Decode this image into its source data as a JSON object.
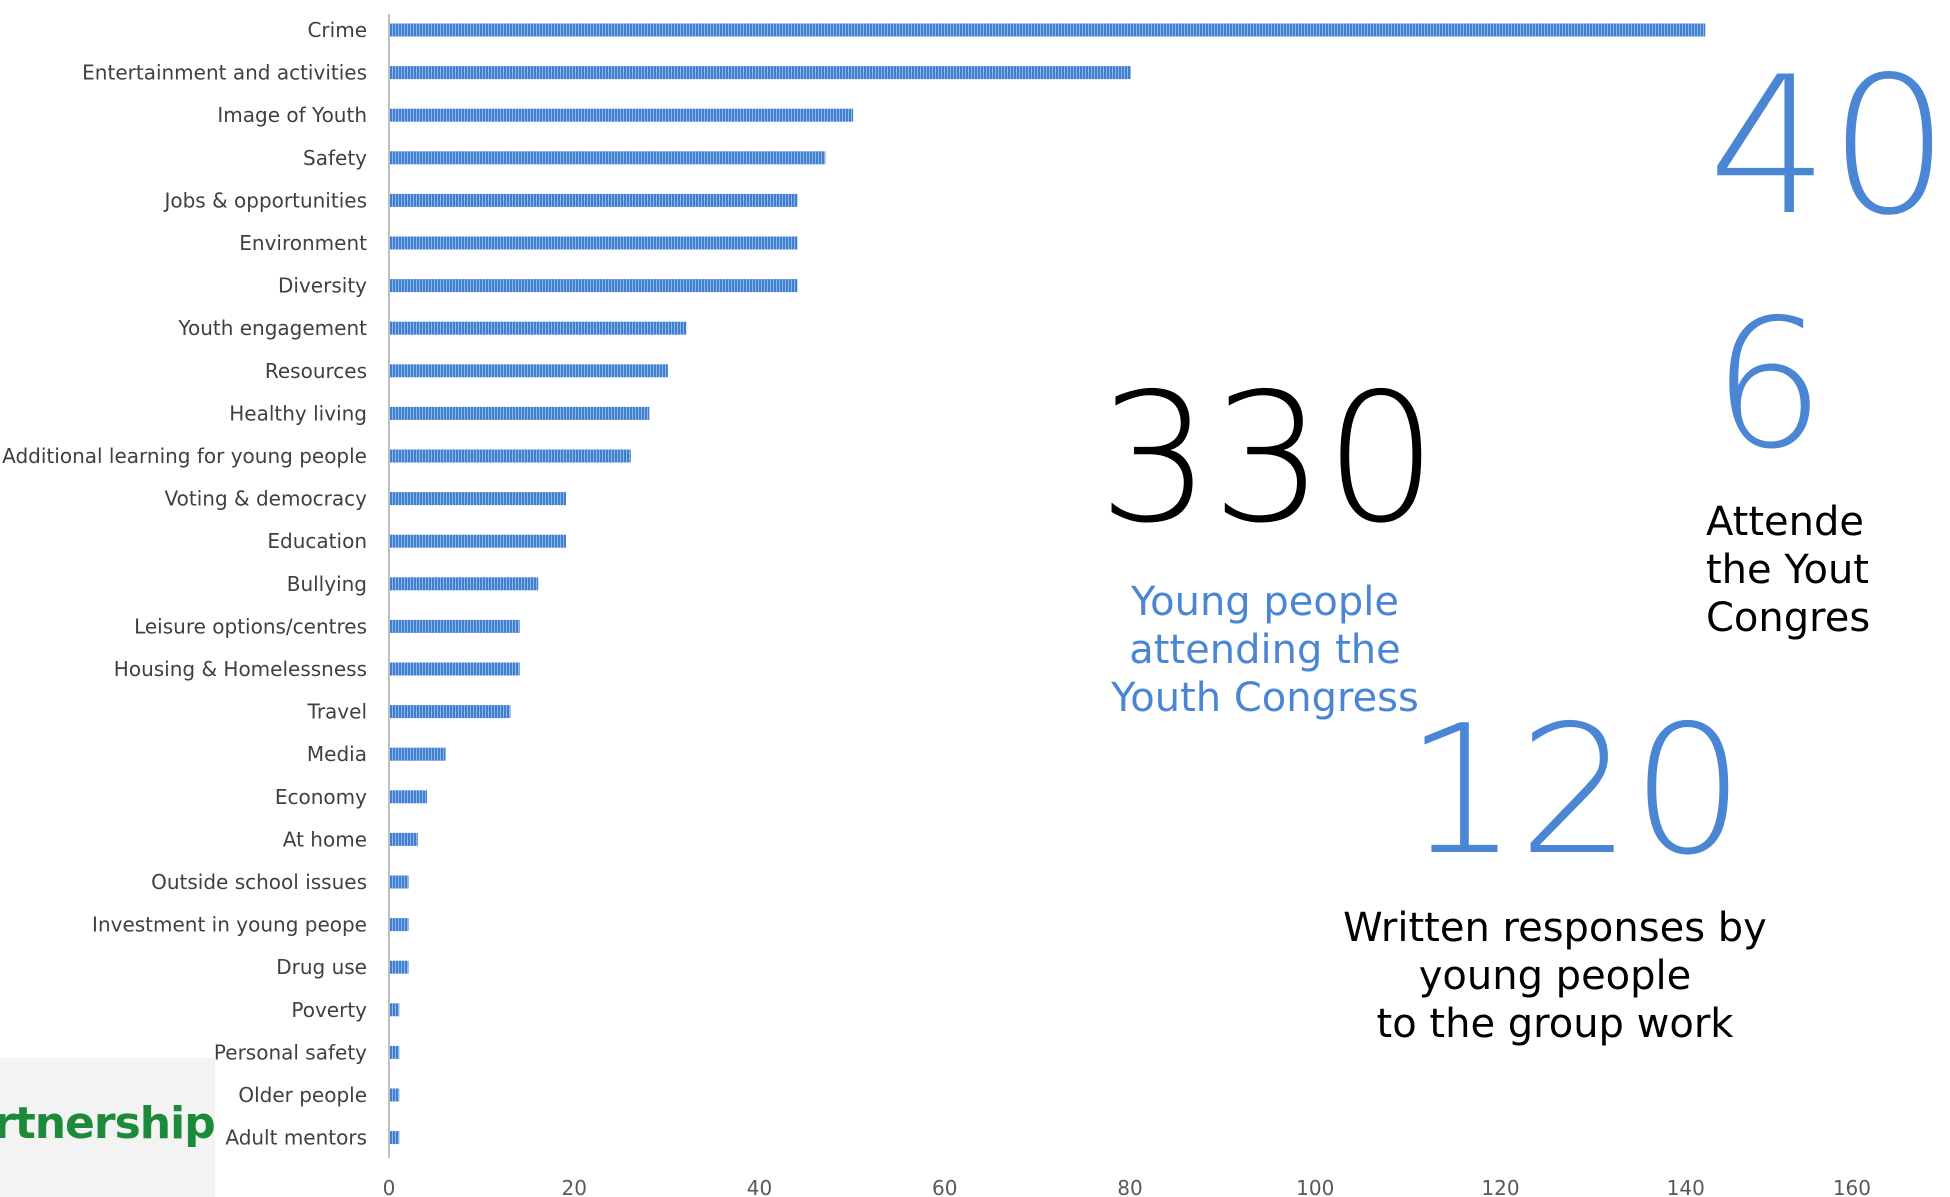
{
  "chart_data": {
    "type": "bar",
    "orientation": "horizontal",
    "categories": [
      "Crime",
      "Entertainment and activities",
      "Image of Youth",
      "Safety",
      "Jobs & opportunities",
      "Environment",
      "Diversity",
      "Youth engagement",
      "Resources",
      "Healthy living",
      "Additional learning for young people",
      "Voting & democracy",
      "Education",
      "Bullying",
      "Leisure options/centres",
      "Housing & Homelessness",
      "Travel",
      "Media",
      "Economy",
      "At home",
      "Outside school issues",
      "Investment in young peope",
      "Drug use",
      "Poverty",
      "Personal safety",
      "Older people",
      "Adult mentors"
    ],
    "values": [
      142,
      80,
      50,
      47,
      44,
      44,
      44,
      32,
      30,
      28,
      26,
      19,
      19,
      16,
      14,
      14,
      13,
      6,
      4,
      3,
      2,
      2,
      2,
      1,
      1,
      1,
      1
    ],
    "xlim": [
      0,
      160
    ],
    "xticks": [
      0,
      20,
      40,
      60,
      80,
      100,
      120,
      140,
      160
    ],
    "bar_color": "#4a86d4",
    "grid": false
  },
  "stats": {
    "attendees": {
      "value": "330",
      "caption": [
        "Young people",
        "attending the",
        "Youth Congress"
      ]
    },
    "responses": {
      "value": "120",
      "caption": [
        "Written responses by",
        "young people",
        "to the group work"
      ]
    },
    "other_top": {
      "value": "40"
    },
    "other_mid": {
      "value": "6",
      "caption": [
        "Attende",
        "the Yout",
        "Congres"
      ]
    }
  },
  "logo": {
    "text": "rtnership"
  },
  "colors": {
    "accent_blue": "#4a86d4",
    "text_dark": "#000000",
    "label_gray": "#404040",
    "axis_gray": "#bfbfbf"
  }
}
